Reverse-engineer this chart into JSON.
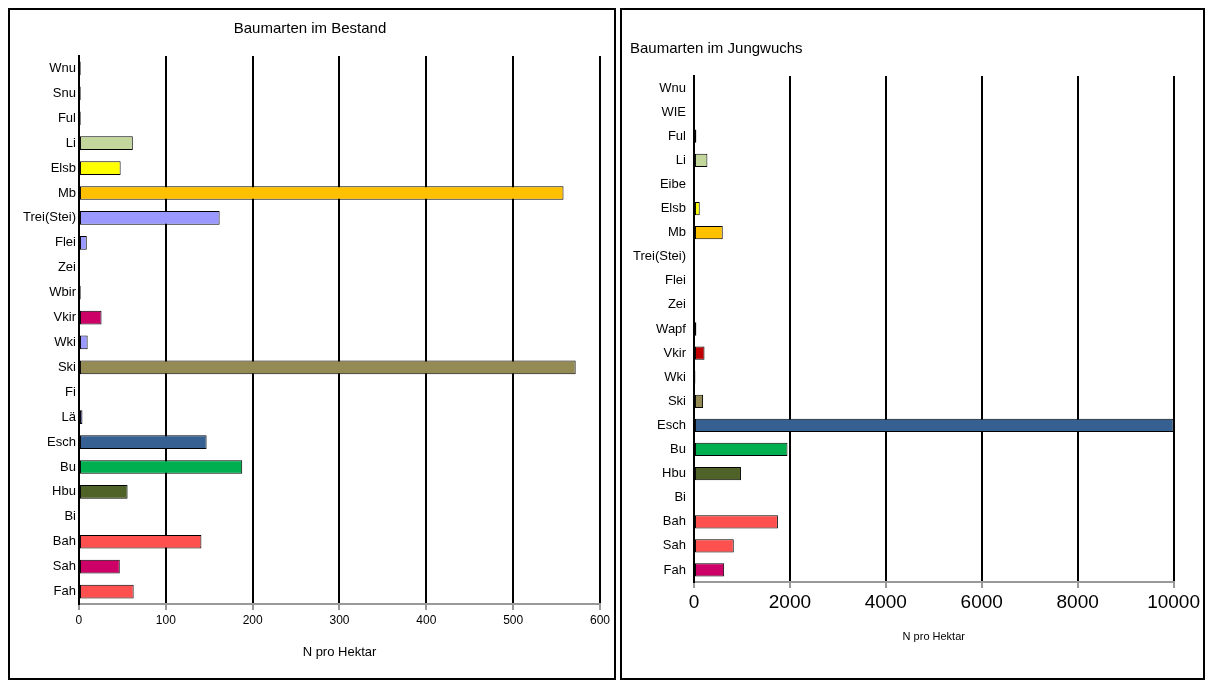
{
  "chart_data": [
    {
      "type": "bar",
      "orientation": "horizontal",
      "title": "Baumarten im Bestand",
      "xlabel": "N pro Hektar",
      "categories": [
        "Wnu",
        "Snu",
        "Ful",
        "Li",
        "Elsb",
        "Mb",
        "Trei(Stei)",
        "Flei",
        "Zei",
        "Wbir",
        "Vkir",
        "Wki",
        "Ski",
        "Fi",
        "Lä",
        "Esch",
        "Bu",
        "Hbu",
        "Bi",
        "Bah",
        "Sah",
        "Fah"
      ],
      "values": [
        2,
        2,
        2,
        62,
        48,
        558,
        162,
        9,
        1,
        2,
        26,
        10,
        572,
        1,
        4,
        147,
        188,
        56,
        1,
        141,
        47,
        63
      ],
      "colors": [
        "#000000",
        "#000000",
        "#000000",
        "#c3d69b",
        "#ffff00",
        "#ffc000",
        "#9999ff",
        "#9999ff",
        "#000000",
        "#000000",
        "#cc0066",
        "#9999ff",
        "#948a54",
        "#000000",
        "#6666cc",
        "#376092",
        "#00b050",
        "#4f6228",
        "#000000",
        "#ff5050",
        "#cc0066",
        "#ff5050"
      ],
      "xlim": [
        0,
        600
      ],
      "xticks": [
        0,
        100,
        200,
        300,
        400,
        500,
        600
      ],
      "grid": "x",
      "legend": false
    },
    {
      "type": "bar",
      "orientation": "horizontal",
      "title": "Baumarten im Jungwuchs",
      "xlabel": "N pro Hektar",
      "categories": [
        "Wnu",
        "WIE",
        "Ful",
        "Li",
        "Eibe",
        "Elsb",
        "Mb",
        "Trei(Stei)",
        "Flei",
        "Zei",
        "Wapf",
        "Vkir",
        "Wki",
        "Ski",
        "Esch",
        "Bu",
        "Hbu",
        "Bi",
        "Bah",
        "Sah",
        "Fah"
      ],
      "values": [
        20,
        10,
        50,
        280,
        20,
        120,
        600,
        0,
        20,
        20,
        50,
        220,
        30,
        190,
        10000,
        1950,
        980,
        0,
        1750,
        830,
        630
      ],
      "colors": [
        "#000000",
        "#000000",
        "#000000",
        "#c3d69b",
        "#000000",
        "#ffff00",
        "#ffc000",
        "#000000",
        "#000000",
        "#000000",
        "#000000",
        "#c00000",
        "#000000",
        "#948a54",
        "#376092",
        "#00b050",
        "#4f6228",
        "#000000",
        "#ff5050",
        "#ff5050",
        "#cc0066"
      ],
      "xlim": [
        0,
        10000
      ],
      "xticks": [
        0,
        2000,
        4000,
        6000,
        8000,
        10000
      ],
      "grid": "x",
      "legend": false
    }
  ]
}
